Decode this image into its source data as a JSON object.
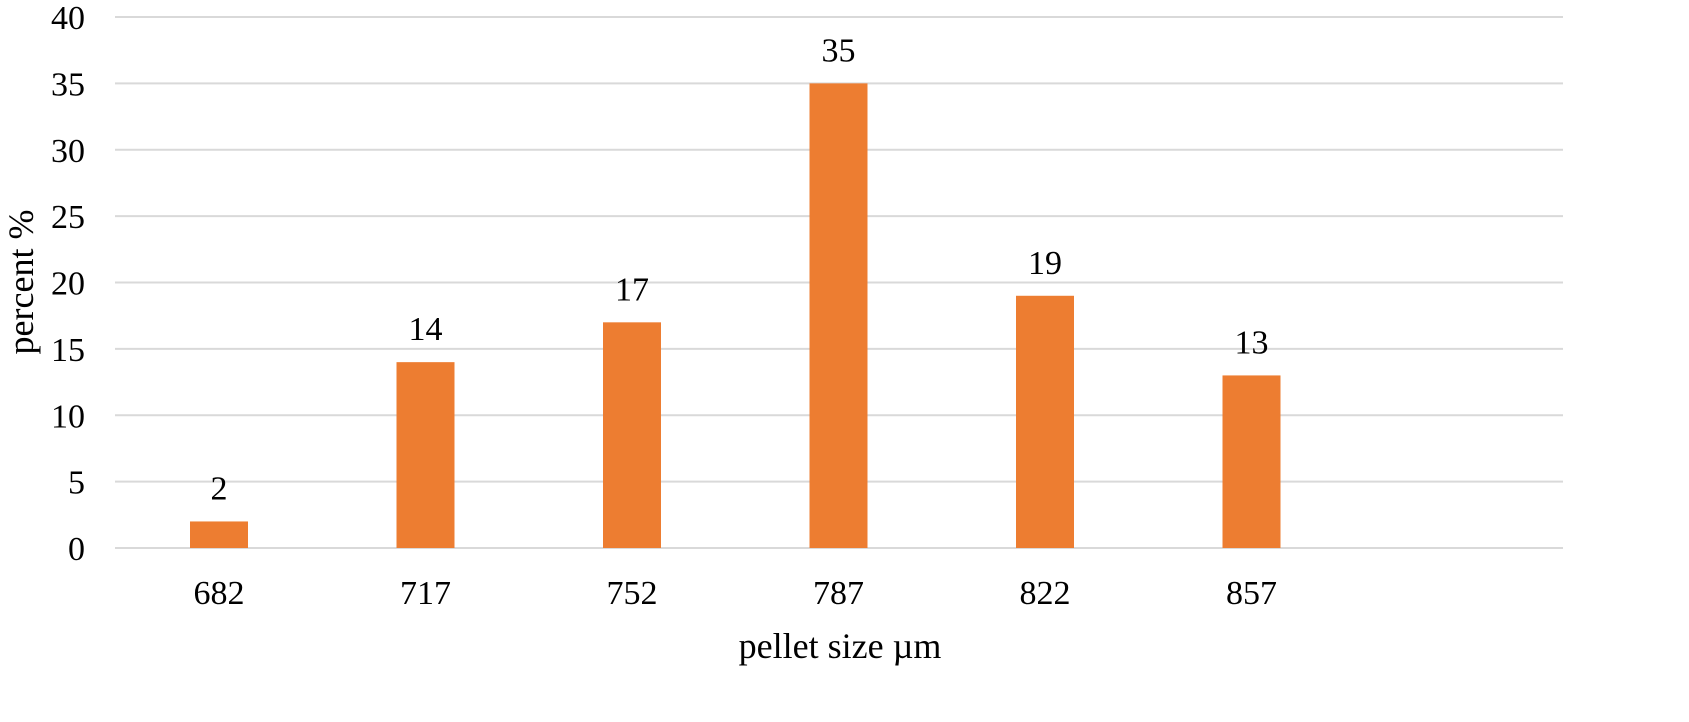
{
  "chart_data": {
    "type": "bar",
    "categories": [
      "682",
      "717",
      "752",
      "787",
      "822",
      "857"
    ],
    "values": [
      2,
      14,
      17,
      35,
      19,
      13
    ],
    "data_labels": [
      "2",
      "14",
      "17",
      "35",
      "19",
      "13"
    ],
    "title": "",
    "xlabel": "pellet size µm",
    "ylabel": "percent %",
    "ylim": [
      0,
      40
    ],
    "yticks": [
      0,
      5,
      10,
      15,
      20,
      25,
      30,
      35,
      40
    ],
    "ytick_labels": [
      "0",
      "5",
      "10",
      "15",
      "20",
      "25",
      "30",
      "35",
      "40"
    ],
    "grid": true,
    "legend": "none",
    "bar_color": "#ED7D31",
    "grid_color": "#D9D9D9"
  }
}
